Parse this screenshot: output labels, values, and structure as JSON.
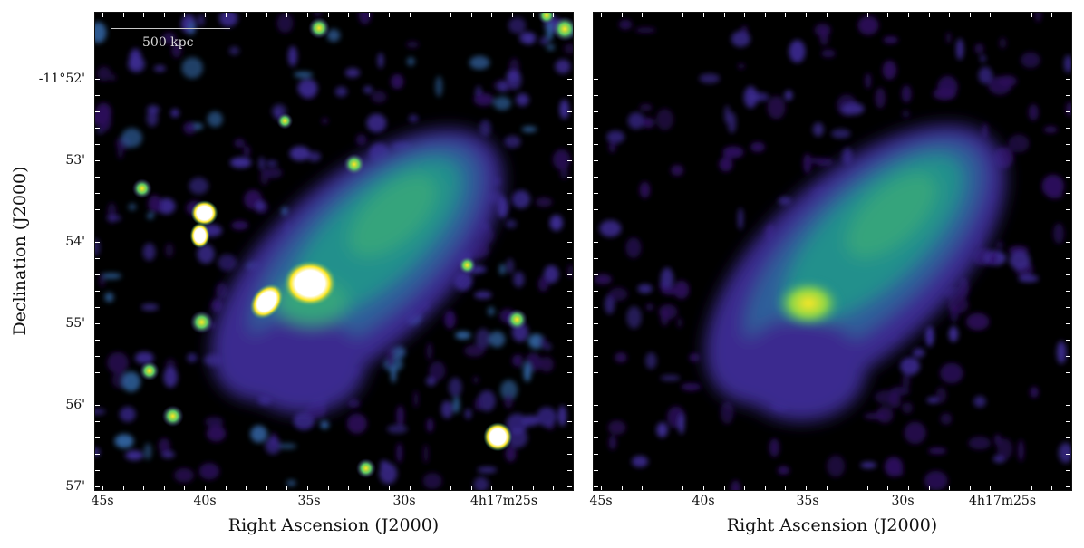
{
  "xlabel": "Right Ascension (J2000)",
  "ylabel": "Declination (J2000)",
  "x_ticks": [
    "45s",
    "40s",
    "35s",
    "30s",
    "4h17m25s"
  ],
  "y_ticks": [
    "-11°52'",
    "53'",
    "54'",
    "55'",
    "56'",
    "57'"
  ],
  "scalebar_label": "500 kpc",
  "colormap": {
    "name": "viridis-like",
    "stops": [
      "#000000",
      "#2b0b5a",
      "#3b2a8f",
      "#2f5f9a",
      "#20908c",
      "#5ec962",
      "#fde725",
      "#ffffff"
    ]
  }
}
